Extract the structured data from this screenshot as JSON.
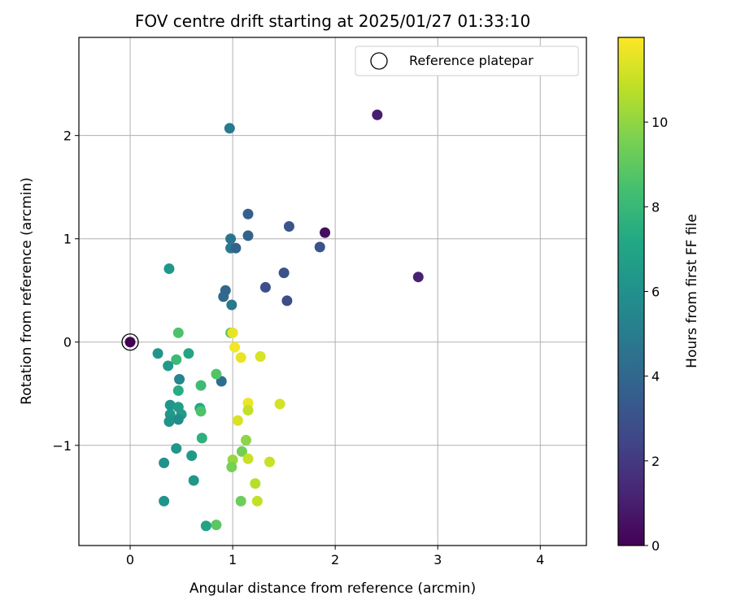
{
  "chart_data": {
    "type": "scatter",
    "title": "FOV centre drift starting at 2025/01/27 01:33:10",
    "xlabel": "Angular distance from reference (arcmin)",
    "ylabel": "Rotation from reference (arcmin)",
    "xlim": [
      -0.5,
      4.45
    ],
    "ylim": [
      -1.97,
      2.95
    ],
    "xticks": [
      0,
      1,
      2,
      3,
      4
    ],
    "xtick_labels": [
      "0",
      "1",
      "2",
      "3",
      "4"
    ],
    "yticks": [
      -1,
      0,
      1,
      2
    ],
    "ytick_labels": [
      "−1",
      "0",
      "1",
      "2"
    ],
    "grid": true,
    "legend": {
      "placement": "top-right",
      "entries": [
        "Reference platepar"
      ]
    },
    "reference_point": {
      "x": 0,
      "y": 0,
      "color_hours": 0
    },
    "colorbar": {
      "label": "Hours from first FF file",
      "colormap": "viridis",
      "range": [
        0,
        12
      ],
      "ticks": [
        0,
        2,
        4,
        6,
        8,
        10
      ],
      "tick_labels": [
        "0",
        "2",
        "4",
        "6",
        "8",
        "10"
      ]
    },
    "points": [
      {
        "x": 2.41,
        "y": 2.2,
        "hours": 1.0
      },
      {
        "x": 1.9,
        "y": 1.06,
        "hours": 0.4
      },
      {
        "x": 2.81,
        "y": 0.63,
        "hours": 1.1
      },
      {
        "x": 1.55,
        "y": 1.12,
        "hours": 3.2
      },
      {
        "x": 1.85,
        "y": 0.92,
        "hours": 3.0
      },
      {
        "x": 1.5,
        "y": 0.67,
        "hours": 3.0
      },
      {
        "x": 1.32,
        "y": 0.53,
        "hours": 2.9
      },
      {
        "x": 1.53,
        "y": 0.4,
        "hours": 2.8
      },
      {
        "x": 1.15,
        "y": 1.24,
        "hours": 3.6
      },
      {
        "x": 1.15,
        "y": 1.03,
        "hours": 3.8
      },
      {
        "x": 0.98,
        "y": 1.0,
        "hours": 4.6
      },
      {
        "x": 0.98,
        "y": 0.91,
        "hours": 4.8
      },
      {
        "x": 1.03,
        "y": 0.91,
        "hours": 3.8
      },
      {
        "x": 0.97,
        "y": 2.07,
        "hours": 4.9
      },
      {
        "x": 0.93,
        "y": 0.5,
        "hours": 4.0
      },
      {
        "x": 0.91,
        "y": 0.44,
        "hours": 4.1
      },
      {
        "x": 0.99,
        "y": 0.36,
        "hours": 4.8
      },
      {
        "x": 0.89,
        "y": -0.38,
        "hours": 4.3
      },
      {
        "x": 0.38,
        "y": 0.71,
        "hours": 6.3
      },
      {
        "x": 0.47,
        "y": 0.09,
        "hours": 8.6
      },
      {
        "x": 0.98,
        "y": 0.09,
        "hours": 9.0
      },
      {
        "x": 1.0,
        "y": 0.09,
        "hours": 11.6
      },
      {
        "x": 1.02,
        "y": -0.05,
        "hours": 11.8
      },
      {
        "x": 1.08,
        "y": -0.15,
        "hours": 11.6
      },
      {
        "x": 1.27,
        "y": -0.14,
        "hours": 11.3
      },
      {
        "x": 0.27,
        "y": -0.11,
        "hours": 6.2
      },
      {
        "x": 0.45,
        "y": -0.17,
        "hours": 8.1
      },
      {
        "x": 0.57,
        "y": -0.11,
        "hours": 7.0
      },
      {
        "x": 0.37,
        "y": -0.23,
        "hours": 6.4
      },
      {
        "x": 0.48,
        "y": -0.36,
        "hours": 5.4
      },
      {
        "x": 0.84,
        "y": -0.31,
        "hours": 8.7
      },
      {
        "x": 0.69,
        "y": -0.42,
        "hours": 8.2
      },
      {
        "x": 0.47,
        "y": -0.47,
        "hours": 7.4
      },
      {
        "x": 1.15,
        "y": -0.59,
        "hours": 11.7
      },
      {
        "x": 1.46,
        "y": -0.6,
        "hours": 11.2
      },
      {
        "x": 0.39,
        "y": -0.61,
        "hours": 6.2
      },
      {
        "x": 0.47,
        "y": -0.63,
        "hours": 6.6
      },
      {
        "x": 0.68,
        "y": -0.64,
        "hours": 7.2
      },
      {
        "x": 0.69,
        "y": -0.67,
        "hours": 8.6
      },
      {
        "x": 1.15,
        "y": -0.66,
        "hours": 10.9
      },
      {
        "x": 0.39,
        "y": -0.7,
        "hours": 6.4
      },
      {
        "x": 0.5,
        "y": -0.7,
        "hours": 6.6
      },
      {
        "x": 0.47,
        "y": -0.75,
        "hours": 5.8
      },
      {
        "x": 0.38,
        "y": -0.77,
        "hours": 6.1
      },
      {
        "x": 1.05,
        "y": -0.76,
        "hours": 11.3
      },
      {
        "x": 0.7,
        "y": -0.93,
        "hours": 7.6
      },
      {
        "x": 1.13,
        "y": -0.95,
        "hours": 9.9
      },
      {
        "x": 0.45,
        "y": -1.03,
        "hours": 6.3
      },
      {
        "x": 1.09,
        "y": -1.06,
        "hours": 9.4
      },
      {
        "x": 0.6,
        "y": -1.1,
        "hours": 6.4
      },
      {
        "x": 1.15,
        "y": -1.13,
        "hours": 11.0
      },
      {
        "x": 1.36,
        "y": -1.16,
        "hours": 11.0
      },
      {
        "x": 0.33,
        "y": -1.17,
        "hours": 6.1
      },
      {
        "x": 1.0,
        "y": -1.14,
        "hours": 10.1
      },
      {
        "x": 0.99,
        "y": -1.21,
        "hours": 9.5
      },
      {
        "x": 1.22,
        "y": -1.37,
        "hours": 10.7
      },
      {
        "x": 0.62,
        "y": -1.34,
        "hours": 6.3
      },
      {
        "x": 1.08,
        "y": -1.54,
        "hours": 9.3
      },
      {
        "x": 1.24,
        "y": -1.54,
        "hours": 10.9
      },
      {
        "x": 0.33,
        "y": -1.54,
        "hours": 6.2
      },
      {
        "x": 0.74,
        "y": -1.78,
        "hours": 6.9
      },
      {
        "x": 0.84,
        "y": -1.77,
        "hours": 8.9
      }
    ]
  }
}
